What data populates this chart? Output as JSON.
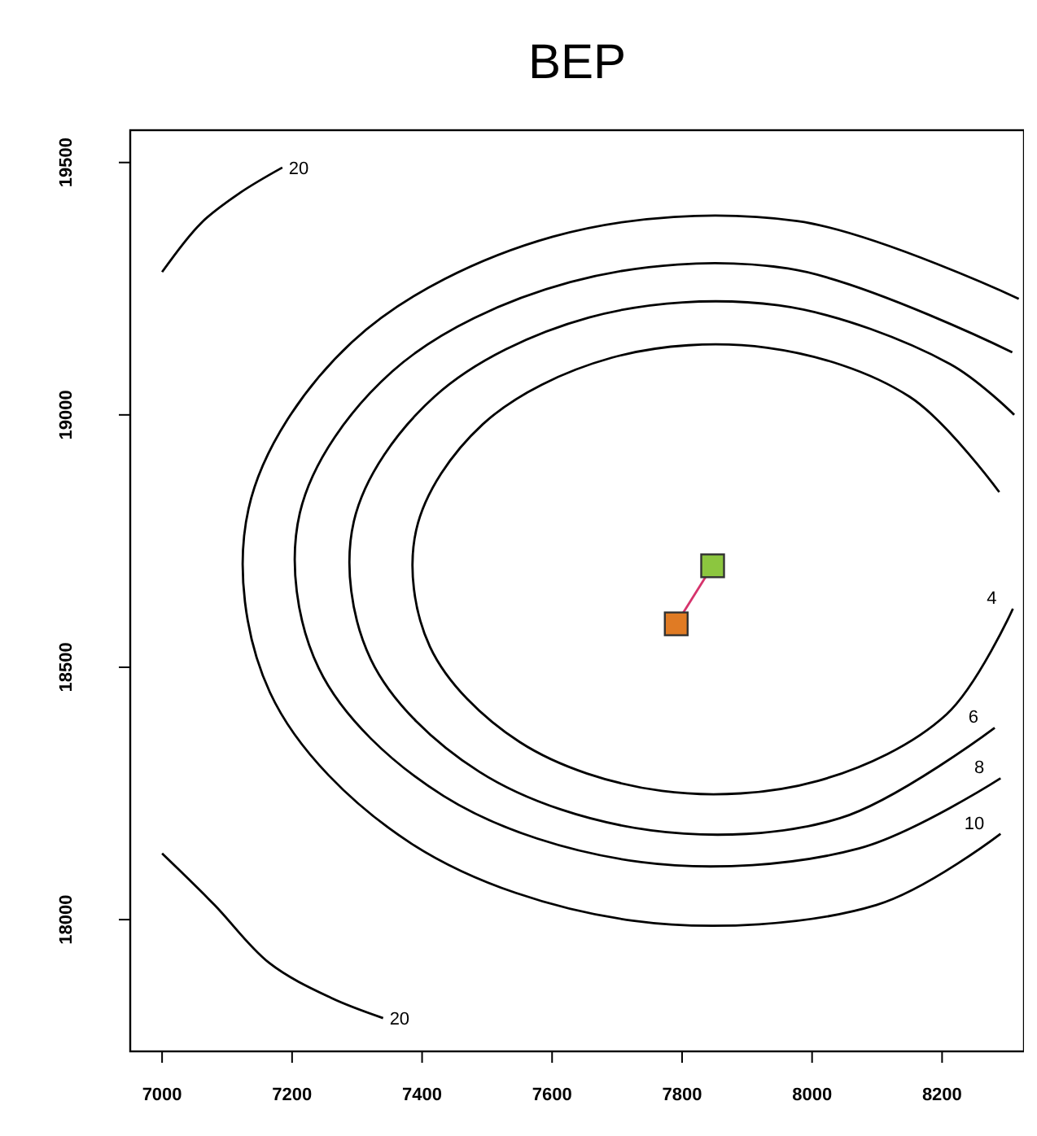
{
  "chart_data": {
    "type": "line",
    "title": "BEP",
    "xlim": [
      6951,
      8326
    ],
    "ylim": [
      17739,
      19564
    ],
    "xticks": [
      7000,
      7200,
      7400,
      7600,
      7800,
      8000,
      8200
    ],
    "yticks": [
      18000,
      18500,
      19000,
      19500
    ],
    "grid": false,
    "line_style": "solid",
    "series": [
      {
        "name": "4",
        "color": "#000000",
        "x": [
          8288,
          8150,
          7931,
          7691,
          7493,
          7391,
          7412,
          7550,
          7769,
          8009,
          8207,
          8309
        ],
        "values": [
          18847,
          19036,
          19133,
          19113,
          18981,
          18772,
          18541,
          18352,
          18255,
          18275,
          18407,
          18616
        ]
      },
      {
        "name": "6",
        "color": "#000000",
        "x": [
          8311,
          8212,
          7948,
          7657,
          7419,
          7295,
          7321,
          7488,
          7752,
          8043,
          8281
        ],
        "values": [
          19000,
          19101,
          19217,
          19193,
          19036,
          18789,
          18516,
          18293,
          18177,
          18201,
          18380
        ]
      },
      {
        "name": "8",
        "color": "#000000",
        "x": [
          8308,
          7963,
          7628,
          7354,
          7212,
          7241,
          7433,
          7737,
          8072,
          8290
        ],
        "values": [
          19124,
          19290,
          19263,
          19086,
          18806,
          18498,
          18245,
          18114,
          18141,
          18280
        ]
      },
      {
        "name": "10",
        "color": "#000000",
        "x": [
          8318,
          7977,
          7601,
          7292,
          7133,
          7166,
          7382,
          7724,
          8099,
          8290
        ],
        "values": [
          19230,
          19384,
          19353,
          19144,
          18814,
          18450,
          18152,
          17998,
          18029,
          18170
        ]
      },
      {
        "name": "20",
        "color": "#000000",
        "x": [
          7000,
          7060,
          7120,
          7185
        ],
        "values": [
          19283,
          19380,
          19440,
          19490
        ]
      },
      {
        "name": "20",
        "color": "#000000",
        "x": [
          7000,
          7080,
          7165,
          7260,
          7340
        ],
        "values": [
          18131,
          18030,
          17914,
          17845,
          17805
        ]
      },
      {
        "type": "line",
        "color": "#d6336c",
        "x": [
          7791,
          7847
        ],
        "values": [
          18586,
          18701
        ]
      },
      {
        "type": "scatter",
        "color": "#e07b24",
        "marker": "square",
        "x": [
          7791
        ],
        "values": [
          18586
        ]
      },
      {
        "type": "scatter",
        "color": "#8cc63f",
        "marker": "square",
        "x": [
          7847
        ],
        "values": [
          18701
        ]
      }
    ]
  }
}
